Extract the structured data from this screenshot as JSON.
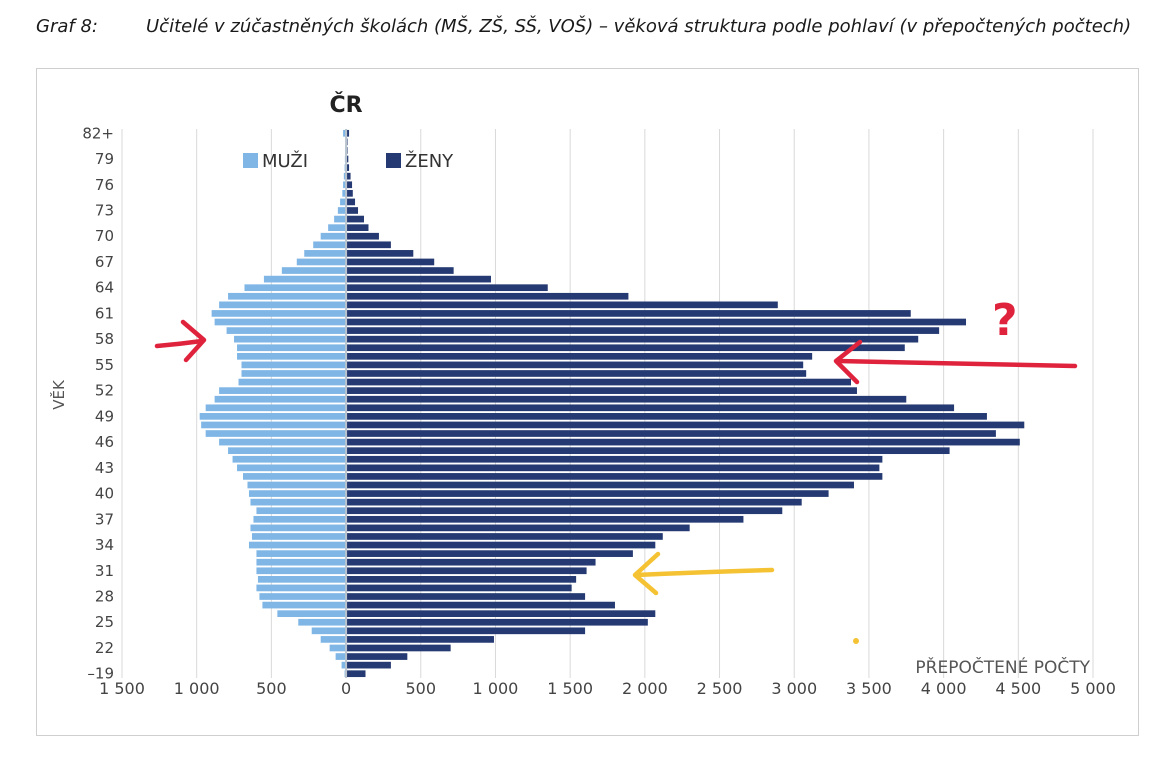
{
  "caption": {
    "label": "Graf 8:",
    "text": "Učitelé v zúčastněných školách (MŠ, ZŠ, SŠ, VOŠ) – věková struktura podle pohlaví (v přepočtených počtech)"
  },
  "chart_data": {
    "type": "bar",
    "orientation": "horizontal",
    "title": "ČR",
    "ylabel": "VĚK",
    "xlabel": "PŘEPOČTENÉ POČTY",
    "x_tick_labels": [
      "1 500",
      "1 000",
      "500",
      "0",
      "500",
      "1 000",
      "1 500",
      "2 000",
      "2 500",
      "3 000",
      "3 500",
      "4 000",
      "4 500",
      "5 000"
    ],
    "x_tick_values": [
      -1500,
      -1000,
      -500,
      0,
      500,
      1000,
      1500,
      2000,
      2500,
      3000,
      3500,
      4000,
      4500,
      5000
    ],
    "xlim": [
      -1500,
      5000
    ],
    "y_tick_labels": [
      "–19",
      "22",
      "25",
      "28",
      "31",
      "34",
      "37",
      "40",
      "43",
      "46",
      "49",
      "52",
      "55",
      "58",
      "61",
      "64",
      "67",
      "70",
      "73",
      "76",
      "79",
      "82+"
    ],
    "categories": [
      "–19",
      "20",
      "21",
      "22",
      "23",
      "24",
      "25",
      "26",
      "27",
      "28",
      "29",
      "30",
      "31",
      "32",
      "33",
      "34",
      "35",
      "36",
      "37",
      "38",
      "39",
      "40",
      "41",
      "42",
      "43",
      "44",
      "45",
      "46",
      "47",
      "48",
      "49",
      "50",
      "51",
      "52",
      "53",
      "54",
      "55",
      "56",
      "57",
      "58",
      "59",
      "60",
      "61",
      "62",
      "63",
      "64",
      "65",
      "66",
      "67",
      "68",
      "69",
      "70",
      "71",
      "72",
      "73",
      "74",
      "75",
      "76",
      "77",
      "78",
      "79",
      "80",
      "81",
      "82+"
    ],
    "legend_position": "top-left",
    "grid": true,
    "series": [
      {
        "name": "MUŽI",
        "color": "#7fb6e6",
        "values": [
          10,
          30,
          70,
          110,
          170,
          230,
          320,
          460,
          560,
          580,
          600,
          590,
          600,
          600,
          600,
          650,
          630,
          640,
          620,
          600,
          640,
          650,
          660,
          690,
          730,
          760,
          790,
          850,
          940,
          970,
          980,
          940,
          880,
          850,
          720,
          700,
          700,
          730,
          730,
          750,
          800,
          880,
          900,
          850,
          790,
          680,
          550,
          430,
          330,
          280,
          220,
          170,
          120,
          80,
          55,
          40,
          25,
          20,
          15,
          10,
          8,
          6,
          4,
          20
        ]
      },
      {
        "name": "ŽENY",
        "color": "#253a72",
        "values": [
          130,
          300,
          410,
          700,
          990,
          1600,
          2020,
          2070,
          1800,
          1600,
          1510,
          1540,
          1610,
          1670,
          1920,
          2070,
          2120,
          2300,
          2660,
          2920,
          3050,
          3230,
          3400,
          3590,
          3570,
          3590,
          4040,
          4510,
          4350,
          4540,
          4290,
          4070,
          3750,
          3420,
          3380,
          3080,
          3060,
          3120,
          3740,
          3830,
          3970,
          4150,
          3780,
          2890,
          1890,
          1350,
          970,
          720,
          590,
          450,
          300,
          220,
          150,
          120,
          80,
          60,
          45,
          40,
          30,
          20,
          15,
          10,
          10,
          20
        ]
      }
    ]
  },
  "annotations": {
    "question_mark": "?"
  }
}
